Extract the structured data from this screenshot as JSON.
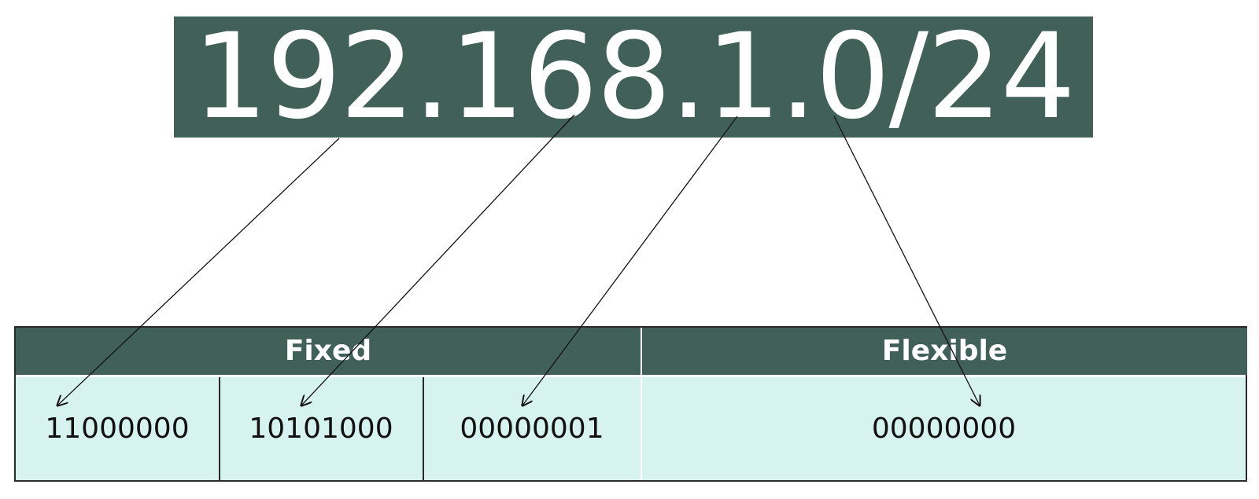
{
  "address": {
    "cidr": "192.168.1.0/24"
  },
  "table": {
    "headers": {
      "fixed": "Fixed",
      "flexible": "Flexible"
    },
    "octets": [
      {
        "binary": "11000000"
      },
      {
        "binary": "10101000"
      },
      {
        "binary": "00000001"
      },
      {
        "binary": "00000000"
      }
    ]
  },
  "colors": {
    "header_bg": "#416158",
    "cell_bg": "#d7f3ef",
    "text_light": "#ffffff",
    "text_dark": "#111111"
  }
}
